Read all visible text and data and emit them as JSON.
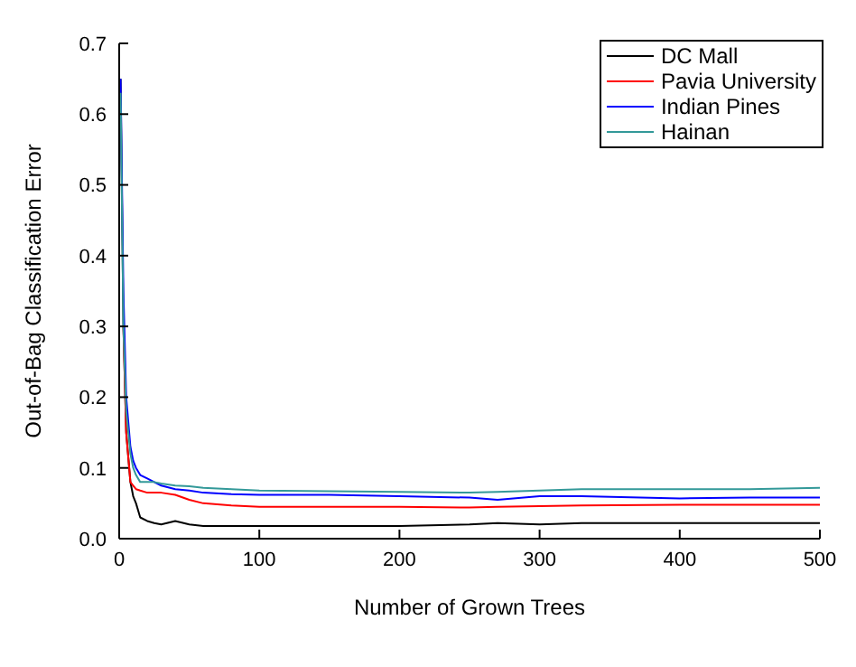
{
  "chart_data": {
    "type": "line",
    "xlabel": "Number of Grown Trees",
    "ylabel": "Out-of-Bag Classification Error",
    "x": [
      1,
      3,
      5,
      8,
      10,
      12,
      15,
      20,
      25,
      30,
      40,
      50,
      60,
      80,
      100,
      150,
      200,
      250,
      270,
      300,
      330,
      400,
      450,
      500
    ],
    "series": [
      {
        "name": "DC Mall",
        "color": "#000000",
        "values": [
          0.65,
          0.3,
          0.15,
          0.08,
          0.06,
          0.05,
          0.03,
          0.025,
          0.022,
          0.02,
          0.025,
          0.02,
          0.018,
          0.018,
          0.018,
          0.018,
          0.018,
          0.02,
          0.022,
          0.02,
          0.022,
          0.022,
          0.022,
          0.022
        ]
      },
      {
        "name": "Pavia University",
        "color": "#ff0000",
        "values": [
          null,
          0.3,
          0.15,
          0.08,
          0.075,
          0.07,
          0.068,
          0.065,
          0.065,
          0.065,
          0.062,
          0.055,
          0.05,
          0.047,
          0.045,
          0.045,
          0.045,
          0.044,
          0.045,
          0.046,
          0.047,
          0.048,
          0.048,
          0.048
        ]
      },
      {
        "name": "Indian Pines",
        "color": "#0000ff",
        "values": [
          0.65,
          0.35,
          0.2,
          0.13,
          0.11,
          0.1,
          0.09,
          0.085,
          0.08,
          0.075,
          0.07,
          0.068,
          0.065,
          0.063,
          0.062,
          0.062,
          0.06,
          0.058,
          0.055,
          0.06,
          0.06,
          0.057,
          0.058,
          0.058
        ]
      },
      {
        "name": "Hainan",
        "color": "#339999",
        "values": [
          0.63,
          0.3,
          0.18,
          0.12,
          0.1,
          0.09,
          0.08,
          0.08,
          0.08,
          0.078,
          0.075,
          0.074,
          0.072,
          0.07,
          0.068,
          0.067,
          0.066,
          0.065,
          0.066,
          0.068,
          0.07,
          0.07,
          0.07,
          0.072
        ]
      }
    ],
    "xlim": [
      0,
      500
    ],
    "xticks": [
      0,
      100,
      200,
      300,
      400,
      500
    ],
    "ylim": [
      0,
      0.7
    ],
    "yticks": [
      {
        "value": 0,
        "label": "0.0"
      },
      {
        "value": 0.1,
        "label": "0.1"
      },
      {
        "value": 0.2,
        "label": "0.2"
      },
      {
        "value": 0.3,
        "label": "0.3"
      },
      {
        "value": 0.4,
        "label": "0.4"
      },
      {
        "value": 0.5,
        "label": "0.5"
      },
      {
        "value": 0.6,
        "label": "0.6"
      },
      {
        "value": 0.7,
        "label": "0.7"
      }
    ],
    "legend": "top right",
    "grid": false,
    "marker": "none",
    "line_style": "solid"
  }
}
